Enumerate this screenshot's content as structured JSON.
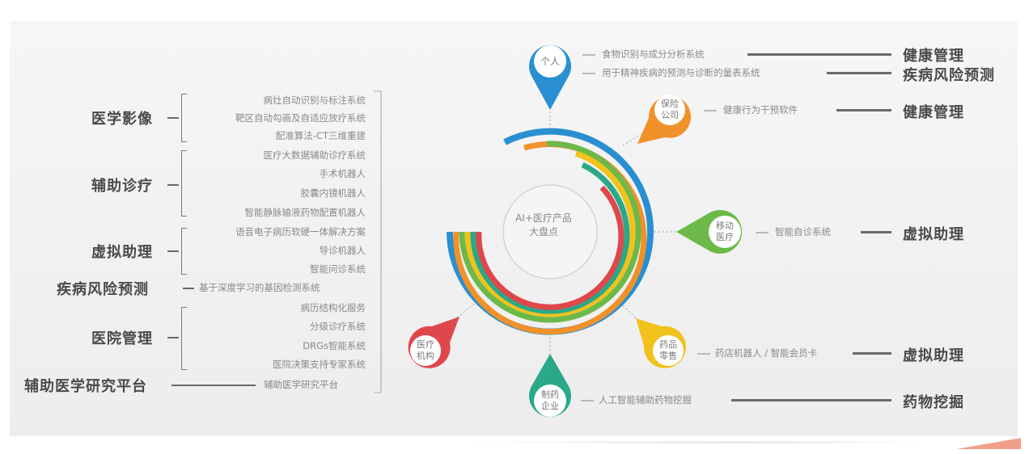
{
  "center": {
    "line1": "AI+医疗产品",
    "line2": "大盘点"
  },
  "left": {
    "categories": {
      "imaging": "医学影像",
      "diagnosis": "辅助诊疗",
      "assistant": "虚拟助理",
      "risk": "疾病风险预测",
      "hospital": "医院管理",
      "research": "辅助医学研究平台"
    },
    "imaging_items": [
      "病灶自动识别与标注系统",
      "靶区自动勾画及自适应放疗系统",
      "配准算法-CT三维重建"
    ],
    "diagnosis_items": [
      "医疗大数据辅助诊疗系统",
      "手术机器人",
      "胶囊内镜机器人",
      "智能静脉输液药物配置机器人"
    ],
    "assistant_items": [
      "语音电子病历软硬一体解决方案",
      "导诊机器人",
      "智能问诊系统"
    ],
    "risk_items": [
      "基于深度学习的基因检测系统"
    ],
    "hospital_items": [
      "病历结构化服务",
      "分级诊疗系统",
      "DRGs智能系统",
      "医院决策支持专家系统"
    ],
    "research_items": [
      "辅助医学研究平台"
    ]
  },
  "pins": {
    "personal": "个人",
    "insurance": [
      "保险",
      "公司"
    ],
    "mobile": [
      "移动",
      "医疗"
    ],
    "pharmacy": [
      "药品",
      "零售"
    ],
    "pharma": [
      "制药",
      "企业"
    ],
    "institution": [
      "医疗",
      "机构"
    ]
  },
  "right": {
    "personal_items": [
      "食物识别与成分分析系统",
      "用于精神疾病的预测与诊断的量表系统"
    ],
    "personal_tags": [
      "健康管理",
      "疾病风险预测"
    ],
    "insurance_item": "健康行为干预软件",
    "insurance_tag": "健康管理",
    "mobile_item": "智能自诊系统",
    "mobile_tag": "虚拟助理",
    "pharmacy_item": "药店机器人 / 智能会员卡",
    "pharmacy_tag": "虚拟助理",
    "pharma_item": "人工智能辅助药物挖掘",
    "pharma_tag": "药物挖掘"
  },
  "colors": {
    "blue": "#2a8fd2",
    "orange": "#f0912a",
    "green": "#6cb94a",
    "yellow": "#f2c21c",
    "teal": "#2aa889",
    "red": "#e0474c"
  }
}
